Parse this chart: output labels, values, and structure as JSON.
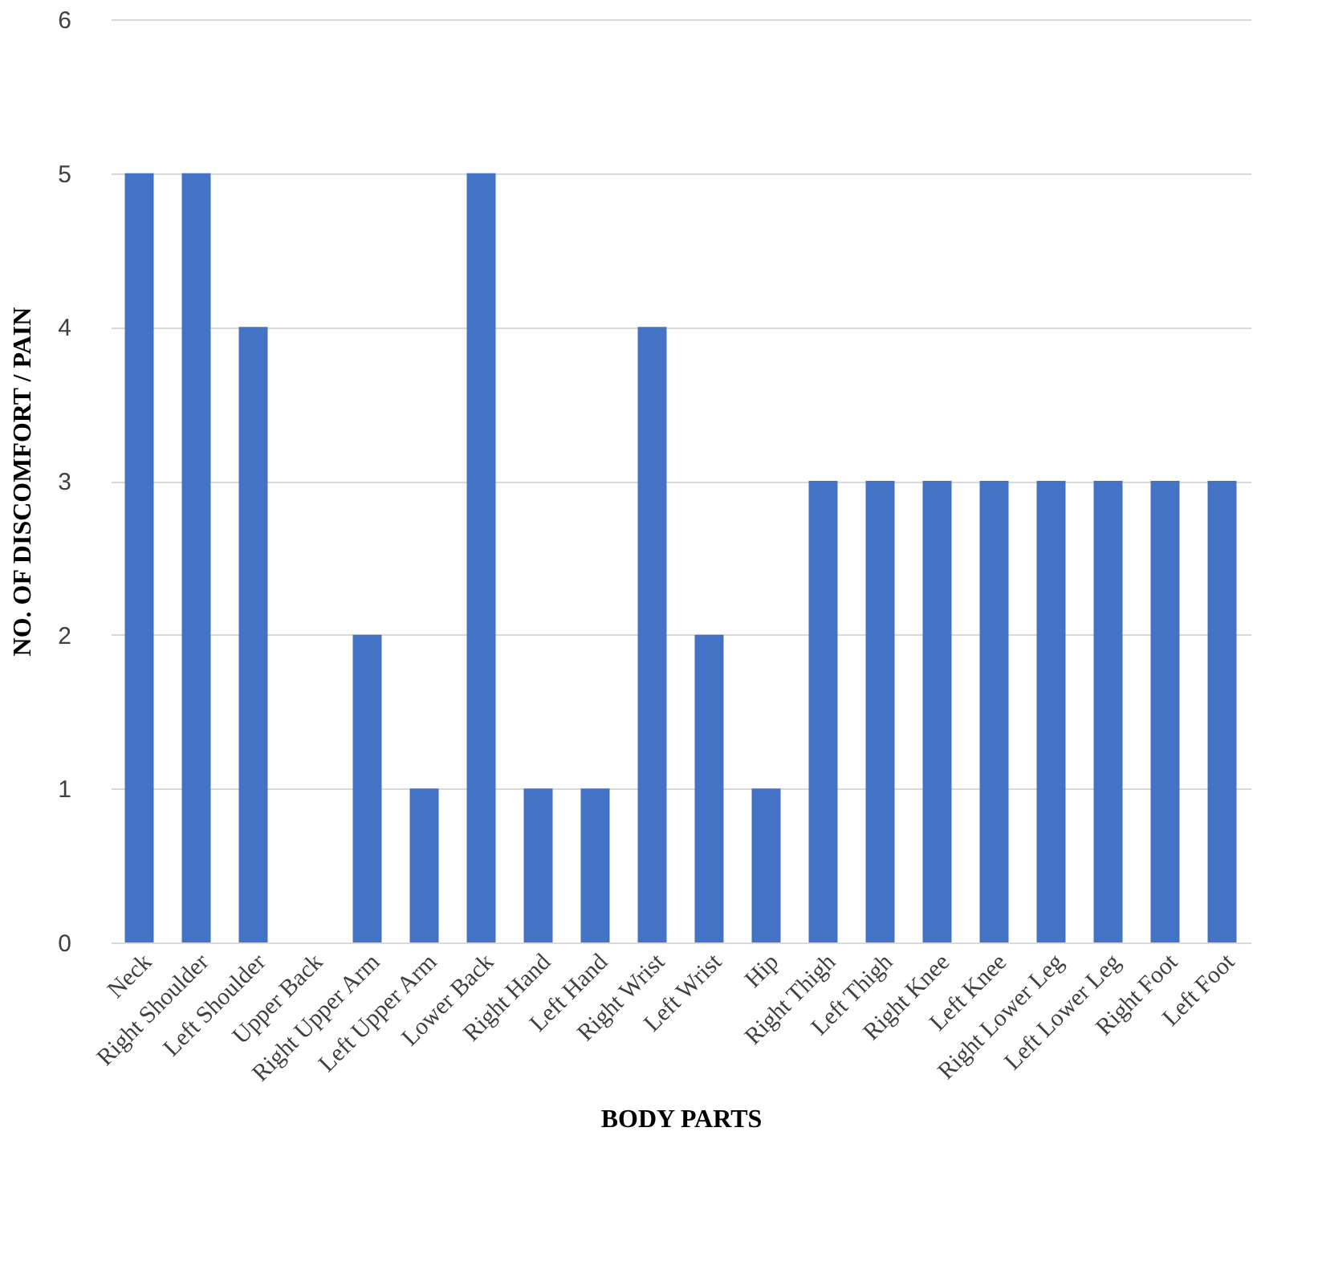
{
  "chart_data": {
    "type": "bar",
    "xlabel": "BODY PARTS",
    "ylabel": "NO. OF DISCOMFORT / PAIN",
    "categories": [
      "Neck",
      "Right Shoulder",
      "Left Shoulder",
      "Upper Back",
      "Right Upper Arm",
      "Left Upper Arm",
      "Lower Back",
      "Right Hand",
      "Left Hand",
      "Right Wrist",
      "Left Wrist",
      "Hip",
      "Right Thigh",
      "Left Thigh",
      "Right Knee",
      "Left Knee",
      "Right Lower Leg",
      "Left Lower Leg",
      "Right Foot",
      "Left Foot"
    ],
    "values": [
      5,
      5,
      4,
      0,
      2,
      1,
      5,
      1,
      1,
      4,
      2,
      1,
      3,
      3,
      3,
      3,
      3,
      3,
      3,
      3
    ],
    "color": "#4472c4",
    "ylim": [
      0,
      6
    ],
    "yticks": [
      0,
      1,
      2,
      3,
      4,
      5,
      6
    ],
    "grid": "y"
  }
}
